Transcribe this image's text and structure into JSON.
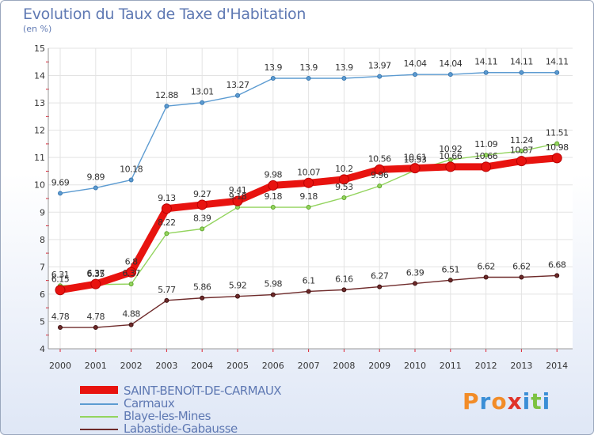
{
  "title": "Evolution du Taux de Taxe d'Habitation",
  "subtitle": "(en %)",
  "logo": {
    "text": "Proxiti",
    "colors": [
      "#f28c28",
      "#3a8ed6",
      "#f28c28",
      "#e0332a",
      "#3a8ed6",
      "#7cc242",
      "#3a8ed6"
    ]
  },
  "chart_data": {
    "type": "line",
    "title": "Evolution du Taux de Taxe d'Habitation",
    "ylabel": "(en %)",
    "xlabel": "",
    "x": [
      "2000",
      "2001",
      "2002",
      "2003",
      "2004",
      "2005",
      "2006",
      "2007",
      "2008",
      "2009",
      "2010",
      "2011",
      "2012",
      "2013",
      "2014"
    ],
    "ylim": [
      4,
      15
    ],
    "yticks": [
      "4",
      "5",
      "6",
      "7",
      "8",
      "9",
      "10",
      "11",
      "12",
      "13",
      "14",
      "15"
    ],
    "grid": true,
    "legend_position": "bottom-left",
    "series": [
      {
        "name": "SAINT-BENOîT-DE-CARMAUX",
        "color": "#e8130f",
        "width": 9,
        "marker": 12,
        "values": [
          6.15,
          6.37,
          6.8,
          9.13,
          9.27,
          9.41,
          9.98,
          10.07,
          10.2,
          10.56,
          10.61,
          10.66,
          10.66,
          10.87,
          10.98
        ],
        "labels": [
          "6.15",
          "6.37",
          "6.8",
          "9.13",
          "9.27",
          "9.41",
          "9.98",
          "10.07",
          "10.2",
          "10.56",
          "10.61",
          "10.66",
          "10.66",
          "10.87",
          "10.98"
        ]
      },
      {
        "name": "Carmaux",
        "color": "#5c9bd1",
        "width": 1.4,
        "marker": 5,
        "values": [
          9.69,
          9.89,
          10.18,
          12.88,
          13.01,
          13.27,
          13.9,
          13.9,
          13.9,
          13.97,
          14.04,
          14.04,
          14.11,
          14.11,
          14.11
        ],
        "labels": [
          "9.69",
          "9.89",
          "10.18",
          "12.88",
          "13.01",
          "13.27",
          "13.9",
          "13.9",
          "13.9",
          "13.97",
          "14.04",
          "14.04",
          "14.11",
          "14.11",
          "14.11"
        ]
      },
      {
        "name": "Blaye-les-Mines",
        "color": "#93d45e",
        "width": 1.4,
        "marker": 5,
        "values": [
          6.31,
          6.35,
          6.37,
          8.22,
          8.39,
          9.18,
          9.18,
          9.18,
          9.53,
          9.96,
          10.53,
          10.92,
          11.09,
          11.24,
          11.51
        ],
        "labels": [
          "6.31",
          "6.35",
          "6.37",
          "8.22",
          "8.39",
          "9.18",
          "9.18",
          "9.18",
          "9.53",
          "9.96",
          "10.53",
          "10.92",
          "11.09",
          "11.24",
          "11.51"
        ]
      },
      {
        "name": "Labastide-Gabausse",
        "color": "#6e2a2a",
        "width": 1.4,
        "marker": 5,
        "values": [
          4.78,
          4.78,
          4.88,
          5.77,
          5.86,
          5.92,
          5.98,
          6.1,
          6.16,
          6.27,
          6.39,
          6.51,
          6.62,
          6.62,
          6.68
        ],
        "labels": [
          "4.78",
          "4.78",
          "4.88",
          "5.77",
          "5.86",
          "5.92",
          "5.98",
          "6.1",
          "6.16",
          "6.27",
          "6.39",
          "6.51",
          "6.62",
          "6.62",
          "6.68"
        ]
      }
    ]
  }
}
